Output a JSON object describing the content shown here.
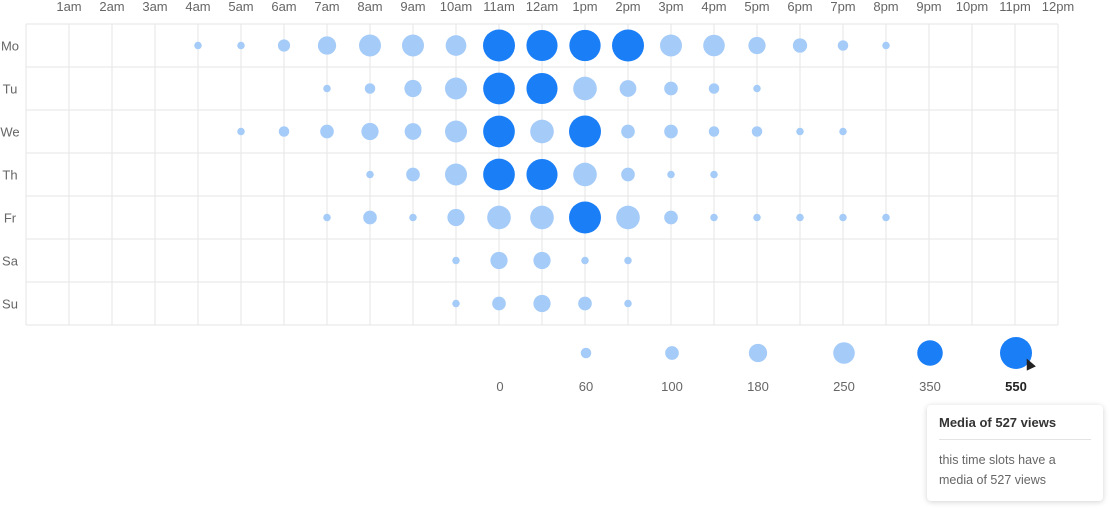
{
  "chart_data": {
    "type": "scatter",
    "title": "",
    "x_categories": [
      "1am",
      "2am",
      "3am",
      "4am",
      "5am",
      "6am",
      "7am",
      "8am",
      "9am",
      "10am",
      "11am",
      "12am",
      "1pm",
      "2pm",
      "3pm",
      "4pm",
      "5pm",
      "6pm",
      "7pm",
      "8pm",
      "9pm",
      "10pm",
      "11pm",
      "12pm"
    ],
    "y_categories": [
      "Mo",
      "Tu",
      "We",
      "Th",
      "Fr",
      "Sa",
      "Su"
    ],
    "values": [
      [
        0,
        0,
        0,
        30,
        30,
        80,
        180,
        260,
        260,
        230,
        550,
        520,
        527,
        550,
        260,
        250,
        160,
        110,
        60,
        30,
        0,
        0,
        0,
        0
      ],
      [
        0,
        0,
        0,
        0,
        0,
        0,
        30,
        60,
        160,
        260,
        540,
        520,
        300,
        150,
        100,
        60,
        30,
        0,
        0,
        0,
        0,
        0,
        0,
        0
      ],
      [
        0,
        0,
        0,
        0,
        30,
        60,
        100,
        160,
        150,
        260,
        540,
        300,
        550,
        100,
        100,
        60,
        60,
        30,
        30,
        0,
        0,
        0,
        0,
        0
      ],
      [
        0,
        0,
        0,
        0,
        0,
        0,
        0,
        30,
        100,
        260,
        540,
        520,
        300,
        100,
        30,
        30,
        0,
        0,
        0,
        0,
        0,
        0,
        0,
        0
      ],
      [
        0,
        0,
        0,
        0,
        0,
        0,
        30,
        100,
        30,
        160,
        300,
        300,
        550,
        300,
        100,
        30,
        30,
        30,
        30,
        30,
        0,
        0,
        0,
        0
      ],
      [
        0,
        0,
        0,
        0,
        0,
        0,
        0,
        0,
        0,
        30,
        160,
        160,
        30,
        30,
        0,
        0,
        0,
        0,
        0,
        0,
        0,
        0,
        0,
        0
      ],
      [
        0,
        0,
        0,
        0,
        0,
        0,
        0,
        0,
        0,
        30,
        100,
        160,
        100,
        30,
        0,
        0,
        0,
        0,
        0,
        0,
        0,
        0,
        0,
        0
      ]
    ],
    "highlight_threshold": 350,
    "colors": {
      "light": "#a5cbf8",
      "highlight": "#1a7ef7",
      "grid": "#e6e6e6",
      "text": "#666666"
    },
    "legend": {
      "labels": [
        "0",
        "60",
        "100",
        "180",
        "250",
        "350",
        "550"
      ],
      "values": [
        0,
        60,
        100,
        180,
        250,
        350,
        550
      ],
      "active": "550"
    }
  },
  "tooltip": {
    "title": "Media of 527 views",
    "body": "this time slots have a media of 527 views"
  }
}
